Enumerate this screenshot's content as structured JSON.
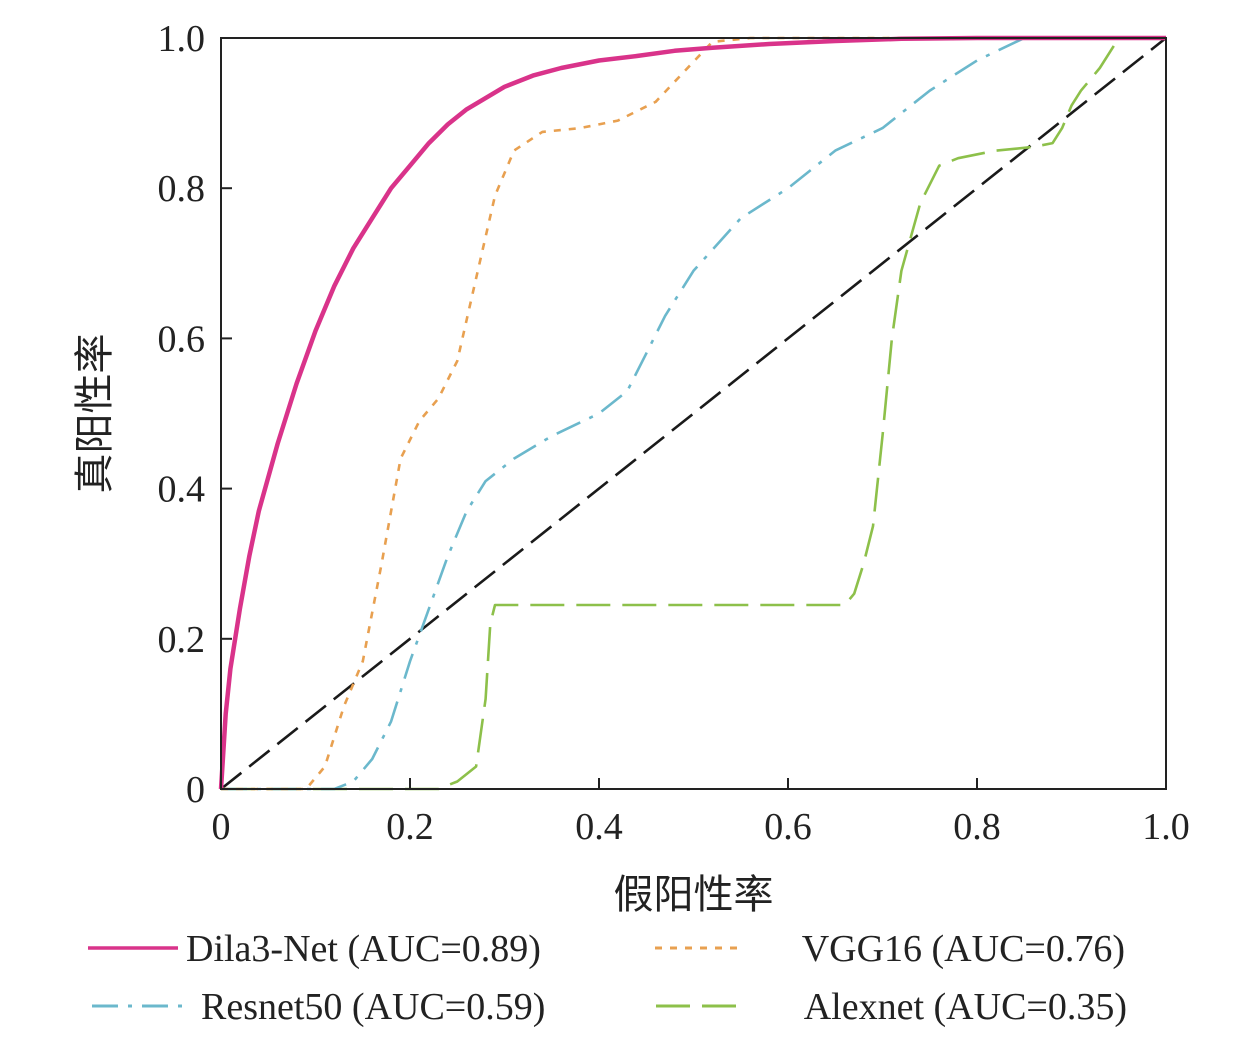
{
  "chart_data": {
    "type": "line",
    "xlabel": "假阳性率",
    "ylabel": "真阳性率",
    "xlim": [
      0,
      1
    ],
    "ylim": [
      0,
      1
    ],
    "grid": false,
    "legend_position": "bottom",
    "x_ticks": [
      "0",
      "0.2",
      "0.4",
      "0.6",
      "0.8",
      "1.0"
    ],
    "y_ticks": [
      "0",
      "0.2",
      "0.4",
      "0.6",
      "0.8",
      "1.0"
    ],
    "series": [
      {
        "name": "Dila3-Net (AUC=0.89)",
        "color": "#d9338a",
        "style": "solid",
        "x": [
          0,
          0.005,
          0.01,
          0.02,
          0.03,
          0.04,
          0.06,
          0.08,
          0.1,
          0.12,
          0.14,
          0.16,
          0.18,
          0.2,
          0.22,
          0.24,
          0.26,
          0.28,
          0.3,
          0.33,
          0.36,
          0.4,
          0.44,
          0.48,
          0.52,
          0.58,
          0.65,
          0.72,
          0.8,
          1.0
        ],
        "y": [
          0,
          0.1,
          0.16,
          0.24,
          0.31,
          0.37,
          0.46,
          0.54,
          0.61,
          0.67,
          0.72,
          0.76,
          0.8,
          0.83,
          0.86,
          0.885,
          0.905,
          0.92,
          0.935,
          0.95,
          0.96,
          0.97,
          0.976,
          0.983,
          0.987,
          0.992,
          0.996,
          0.999,
          1.0,
          1.0
        ]
      },
      {
        "name": "VGG16 (AUC=0.76)",
        "color": "#e8a050",
        "style": "short-dash",
        "x": [
          0,
          0.09,
          0.11,
          0.13,
          0.15,
          0.17,
          0.19,
          0.21,
          0.23,
          0.25,
          0.27,
          0.29,
          0.31,
          0.34,
          0.38,
          0.42,
          0.46,
          0.49,
          0.52,
          0.56,
          0.62,
          0.7,
          0.8,
          1.0
        ],
        "y": [
          0,
          0,
          0.03,
          0.11,
          0.17,
          0.3,
          0.44,
          0.49,
          0.52,
          0.57,
          0.68,
          0.79,
          0.85,
          0.875,
          0.88,
          0.89,
          0.915,
          0.955,
          0.995,
          1.0,
          1.0,
          1.0,
          1.0,
          1.0
        ]
      },
      {
        "name": "Resnet50 (AUC=0.59)",
        "color": "#6bb8cc",
        "style": "dash-dot",
        "x": [
          0,
          0.12,
          0.14,
          0.16,
          0.18,
          0.2,
          0.22,
          0.24,
          0.26,
          0.28,
          0.31,
          0.35,
          0.4,
          0.43,
          0.45,
          0.47,
          0.5,
          0.55,
          0.6,
          0.65,
          0.7,
          0.75,
          0.8,
          0.85,
          0.9,
          1.0
        ],
        "y": [
          0,
          0,
          0.01,
          0.04,
          0.09,
          0.17,
          0.24,
          0.31,
          0.37,
          0.41,
          0.44,
          0.47,
          0.5,
          0.53,
          0.58,
          0.63,
          0.69,
          0.76,
          0.8,
          0.85,
          0.88,
          0.93,
          0.97,
          1.0,
          1.0,
          1.0
        ]
      },
      {
        "name": "Alexnet (AUC=0.35)",
        "color": "#8dc04a",
        "style": "long-dash",
        "x": [
          0,
          0.23,
          0.25,
          0.27,
          0.28,
          0.285,
          0.29,
          0.4,
          0.55,
          0.66,
          0.67,
          0.68,
          0.69,
          0.7,
          0.71,
          0.72,
          0.74,
          0.76,
          0.78,
          0.82,
          0.86,
          0.88,
          0.89,
          0.9,
          0.91,
          0.93,
          0.95,
          1.0
        ],
        "y": [
          0,
          0,
          0.01,
          0.03,
          0.12,
          0.22,
          0.245,
          0.245,
          0.245,
          0.245,
          0.26,
          0.3,
          0.35,
          0.47,
          0.6,
          0.69,
          0.78,
          0.83,
          0.84,
          0.85,
          0.855,
          0.86,
          0.88,
          0.91,
          0.93,
          0.96,
          1.0,
          1.0
        ]
      },
      {
        "name": "",
        "color": "#1a1a1a",
        "style": "diagonal-dash",
        "x": [
          0,
          1
        ],
        "y": [
          0,
          1
        ]
      }
    ]
  }
}
